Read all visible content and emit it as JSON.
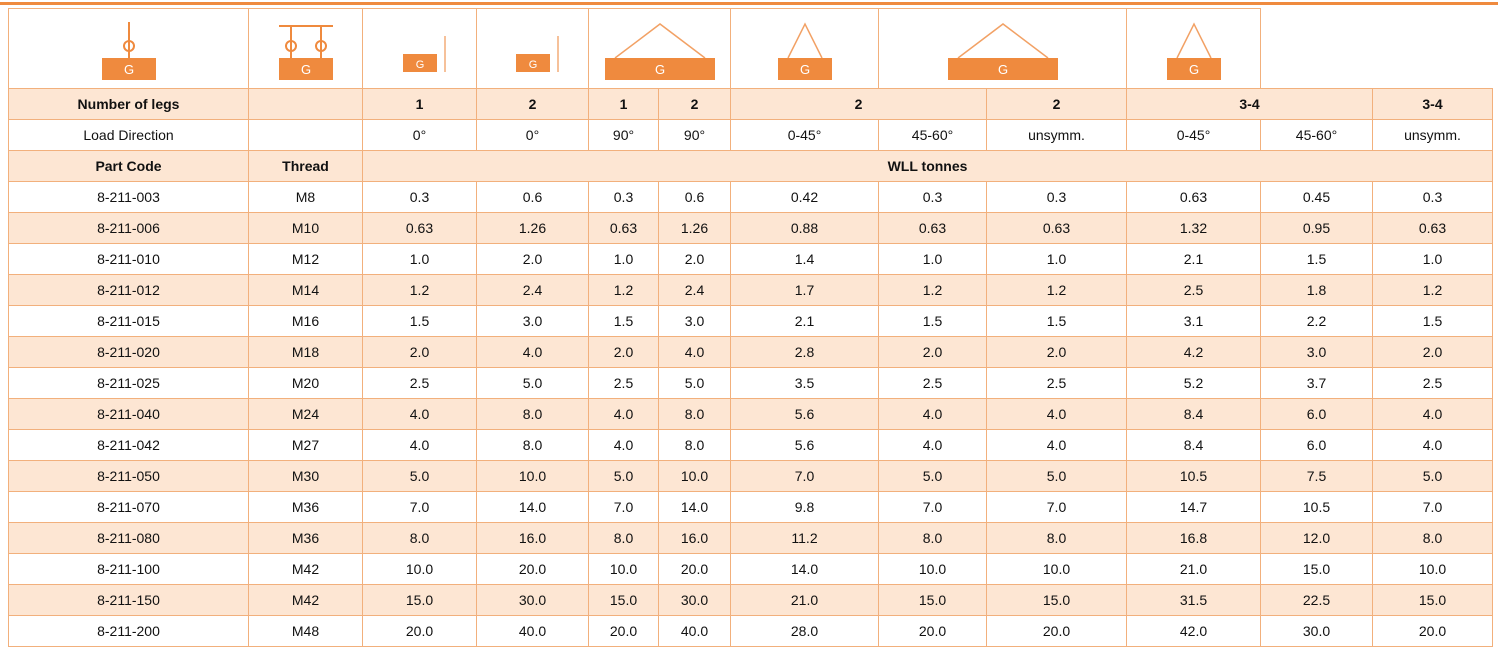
{
  "table": {
    "icon_letter": "G",
    "legs_label": "Number of legs",
    "legs": [
      "1",
      "2",
      "1",
      "2",
      "2",
      "2",
      "3-4",
      "3-4"
    ],
    "direction_label": "Load Direction",
    "directions": [
      "0°",
      "0°",
      "90°",
      "90°",
      "0-45°",
      "45-60°",
      "unsymm.",
      "0-45°",
      "45-60°",
      "unsymm."
    ],
    "columns": [
      "Part Code",
      "Thread",
      "WLL tonnes"
    ],
    "rows": [
      [
        "8-211-003",
        "M8",
        "0.3",
        "0.6",
        "0.3",
        "0.6",
        "0.42",
        "0.3",
        "0.3",
        "0.63",
        "0.45",
        "0.3"
      ],
      [
        "8-211-006",
        "M10",
        "0.63",
        "1.26",
        "0.63",
        "1.26",
        "0.88",
        "0.63",
        "0.63",
        "1.32",
        "0.95",
        "0.63"
      ],
      [
        "8-211-010",
        "M12",
        "1.0",
        "2.0",
        "1.0",
        "2.0",
        "1.4",
        "1.0",
        "1.0",
        "2.1",
        "1.5",
        "1.0"
      ],
      [
        "8-211-012",
        "M14",
        "1.2",
        "2.4",
        "1.2",
        "2.4",
        "1.7",
        "1.2",
        "1.2",
        "2.5",
        "1.8",
        "1.2"
      ],
      [
        "8-211-015",
        "M16",
        "1.5",
        "3.0",
        "1.5",
        "3.0",
        "2.1",
        "1.5",
        "1.5",
        "3.1",
        "2.2",
        "1.5"
      ],
      [
        "8-211-020",
        "M18",
        "2.0",
        "4.0",
        "2.0",
        "4.0",
        "2.8",
        "2.0",
        "2.0",
        "4.2",
        "3.0",
        "2.0"
      ],
      [
        "8-211-025",
        "M20",
        "2.5",
        "5.0",
        "2.5",
        "5.0",
        "3.5",
        "2.5",
        "2.5",
        "5.2",
        "3.7",
        "2.5"
      ],
      [
        "8-211-040",
        "M24",
        "4.0",
        "8.0",
        "4.0",
        "8.0",
        "5.6",
        "4.0",
        "4.0",
        "8.4",
        "6.0",
        "4.0"
      ],
      [
        "8-211-042",
        "M27",
        "4.0",
        "8.0",
        "4.0",
        "8.0",
        "5.6",
        "4.0",
        "4.0",
        "8.4",
        "6.0",
        "4.0"
      ],
      [
        "8-211-050",
        "M30",
        "5.0",
        "10.0",
        "5.0",
        "10.0",
        "7.0",
        "5.0",
        "5.0",
        "10.5",
        "7.5",
        "5.0"
      ],
      [
        "8-211-070",
        "M36",
        "7.0",
        "14.0",
        "7.0",
        "14.0",
        "9.8",
        "7.0",
        "7.0",
        "14.7",
        "10.5",
        "7.0"
      ],
      [
        "8-211-080",
        "M36",
        "8.0",
        "16.0",
        "8.0",
        "16.0",
        "11.2",
        "8.0",
        "8.0",
        "16.8",
        "12.0",
        "8.0"
      ],
      [
        "8-211-100",
        "M42",
        "10.0",
        "20.0",
        "10.0",
        "20.0",
        "14.0",
        "10.0",
        "10.0",
        "21.0",
        "15.0",
        "10.0"
      ],
      [
        "8-211-150",
        "M42",
        "15.0",
        "30.0",
        "15.0",
        "30.0",
        "21.0",
        "15.0",
        "15.0",
        "31.5",
        "22.5",
        "15.0"
      ],
      [
        "8-211-200",
        "M48",
        "20.0",
        "40.0",
        "20.0",
        "40.0",
        "28.0",
        "20.0",
        "20.0",
        "42.0",
        "30.0",
        "20.0"
      ]
    ]
  }
}
